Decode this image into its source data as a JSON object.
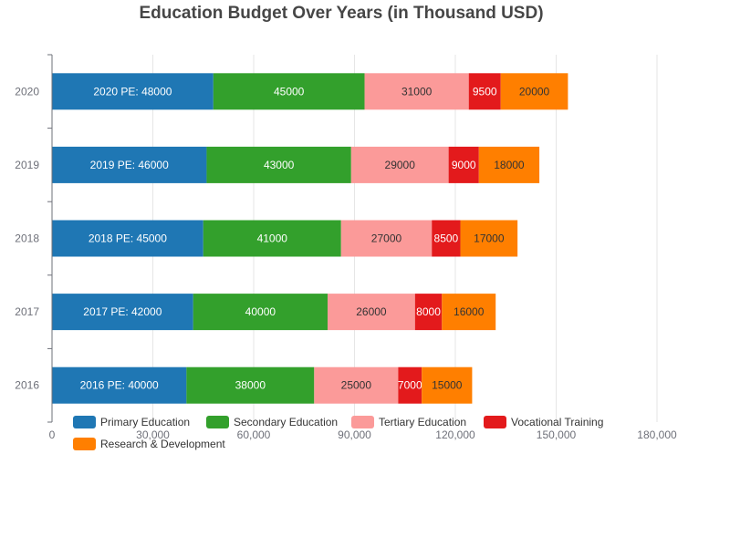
{
  "chart_data": {
    "type": "bar",
    "orientation": "horizontal",
    "stacked": true,
    "title": "Education Budget Over Years (in Thousand USD)",
    "categories": [
      "2016",
      "2017",
      "2018",
      "2019",
      "2020"
    ],
    "xlim": [
      0,
      180000
    ],
    "x_ticks": [
      "0",
      "30,000",
      "60,000",
      "90,000",
      "120,000",
      "150,000",
      "180,000"
    ],
    "grid": true,
    "legend_position": "bottom-left",
    "series": [
      {
        "name": "Primary Education",
        "color": "#1f77b4",
        "values": [
          40000,
          42000,
          45000,
          46000,
          48000
        ],
        "labels": [
          "2016 PE: 40000",
          "2017 PE: 42000",
          "2018 PE: 45000",
          "2019 PE: 46000",
          "2020 PE: 48000"
        ],
        "label_color": "#ffffff"
      },
      {
        "name": "Secondary Education",
        "color": "#33a02c",
        "values": [
          38000,
          40000,
          41000,
          43000,
          45000
        ],
        "labels": [
          "38000",
          "40000",
          "41000",
          "43000",
          "45000"
        ],
        "label_color": "#ffffff"
      },
      {
        "name": "Tertiary Education",
        "color": "#fb9a99",
        "values": [
          25000,
          26000,
          27000,
          29000,
          31000
        ],
        "labels": [
          "25000",
          "26000",
          "27000",
          "29000",
          "31000"
        ],
        "label_color": "#333333"
      },
      {
        "name": "Vocational Training",
        "color": "#e31a1c",
        "values": [
          7000,
          8000,
          8500,
          9000,
          9500
        ],
        "labels": [
          "7000",
          "8000",
          "8500",
          "9000",
          "9500"
        ],
        "label_color": "#ffffff"
      },
      {
        "name": "Research & Development",
        "color": "#ff7f00",
        "values": [
          15000,
          16000,
          17000,
          18000,
          20000
        ],
        "labels": [
          "15000",
          "16000",
          "17000",
          "18000",
          "20000"
        ],
        "label_color": "#333333"
      }
    ]
  }
}
